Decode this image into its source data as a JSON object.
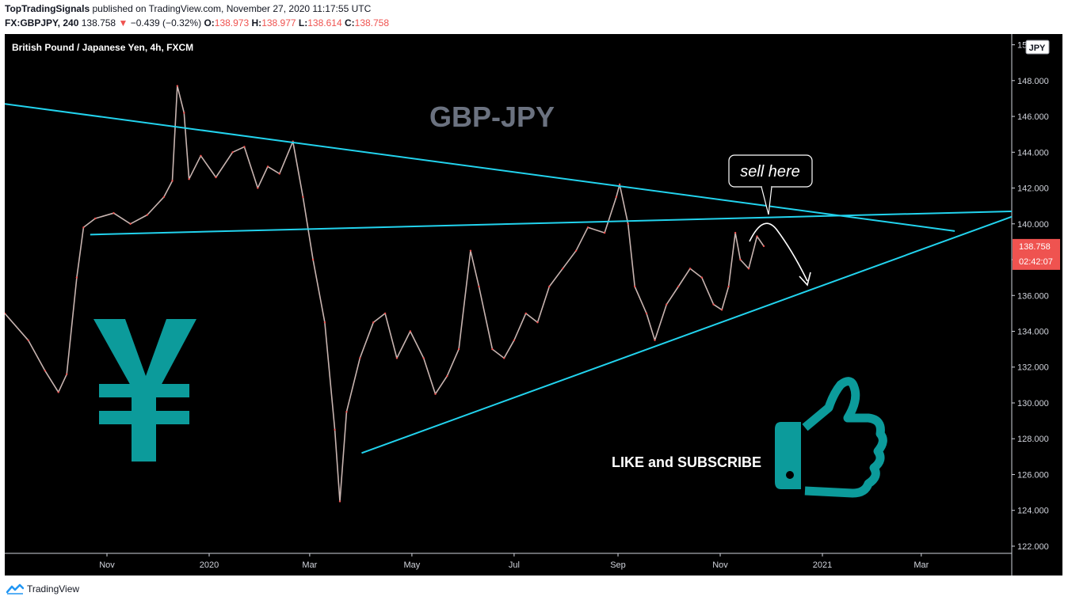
{
  "header": {
    "author": "TopTradingSignals",
    "published": "published on TradingView.com, November 27, 2020 11:17:55 UTC",
    "symbol": "FX:GBPJPY, 240",
    "last": "138.758",
    "change": "−0.439 (−0.32%)",
    "o_label": "O:",
    "o": "138.973",
    "h_label": "H:",
    "h": "138.977",
    "l_label": "L:",
    "l": "138.614",
    "c_label": "C:",
    "c": "138.758"
  },
  "legend_title": "British Pound / Japanese Yen, 4h, FXCM",
  "currency_badge": "JPY",
  "price_label": "138.758",
  "countdown": "02:42:07",
  "annotations": {
    "watermark": "GBP-JPY",
    "callout": "sell here",
    "cta": "LIKE and SUBSCRIBE",
    "yen_symbol": "¥"
  },
  "footer": {
    "brand": "TradingView"
  },
  "colors": {
    "bg": "#000000",
    "trendline": "#22d3ee",
    "teal": "#0c9b9b",
    "price_tag": "#ef5350"
  },
  "chart_data": {
    "type": "line",
    "title": "British Pound / Japanese Yen, 4h, FXCM",
    "xlabel": "",
    "ylabel": "",
    "y_ticks": [
      "150.000",
      "148.000",
      "146.000",
      "144.000",
      "142.000",
      "140.000",
      "138.000",
      "136.000",
      "134.000",
      "132.000",
      "130.000",
      "128.000",
      "126.000",
      "124.000",
      "122.000"
    ],
    "x_ticks": [
      "Nov",
      "2020",
      "Mar",
      "May",
      "Jul",
      "Sep",
      "Nov",
      "2021",
      "Mar"
    ],
    "ylim": [
      121.6,
      150.6
    ],
    "x_start": "2019-09-01",
    "x_end": "2021-04-24",
    "series": [
      {
        "points": [
          [
            "2019-09-01",
            135.0
          ],
          [
            "2019-09-15",
            133.5
          ],
          [
            "2019-09-25",
            131.8
          ],
          [
            "2019-10-03",
            130.6
          ],
          [
            "2019-10-08",
            131.6
          ],
          [
            "2019-10-14",
            137.0
          ],
          [
            "2019-10-18",
            139.8
          ],
          [
            "2019-10-25",
            140.3
          ],
          [
            "2019-11-05",
            140.6
          ],
          [
            "2019-11-15",
            140.0
          ],
          [
            "2019-11-25",
            140.5
          ],
          [
            "2019-12-05",
            141.5
          ],
          [
            "2019-12-10",
            142.4
          ],
          [
            "2019-12-13",
            147.7
          ],
          [
            "2019-12-17",
            146.2
          ],
          [
            "2019-12-20",
            142.5
          ],
          [
            "2019-12-27",
            143.8
          ],
          [
            "2020-01-05",
            142.6
          ],
          [
            "2020-01-15",
            144.0
          ],
          [
            "2020-01-22",
            144.3
          ],
          [
            "2020-01-30",
            142.0
          ],
          [
            "2020-02-05",
            143.2
          ],
          [
            "2020-02-12",
            142.8
          ],
          [
            "2020-02-20",
            144.6
          ],
          [
            "2020-02-26",
            141.5
          ],
          [
            "2020-03-03",
            138.0
          ],
          [
            "2020-03-10",
            134.5
          ],
          [
            "2020-03-16",
            128.5
          ],
          [
            "2020-03-19",
            124.5
          ],
          [
            "2020-03-23",
            129.5
          ],
          [
            "2020-03-31",
            132.5
          ],
          [
            "2020-04-08",
            134.5
          ],
          [
            "2020-04-15",
            135.0
          ],
          [
            "2020-04-22",
            132.5
          ],
          [
            "2020-04-30",
            134.0
          ],
          [
            "2020-05-08",
            132.5
          ],
          [
            "2020-05-15",
            130.5
          ],
          [
            "2020-05-22",
            131.5
          ],
          [
            "2020-05-29",
            133.0
          ],
          [
            "2020-06-05",
            138.5
          ],
          [
            "2020-06-10",
            136.5
          ],
          [
            "2020-06-18",
            133.0
          ],
          [
            "2020-06-25",
            132.5
          ],
          [
            "2020-07-01",
            133.5
          ],
          [
            "2020-07-08",
            135.0
          ],
          [
            "2020-07-15",
            134.5
          ],
          [
            "2020-07-22",
            136.5
          ],
          [
            "2020-07-30",
            137.5
          ],
          [
            "2020-08-07",
            138.5
          ],
          [
            "2020-08-14",
            139.8
          ],
          [
            "2020-08-24",
            139.5
          ],
          [
            "2020-08-31",
            141.5
          ],
          [
            "2020-09-02",
            142.2
          ],
          [
            "2020-09-07",
            140.0
          ],
          [
            "2020-09-11",
            136.5
          ],
          [
            "2020-09-18",
            135.0
          ],
          [
            "2020-09-23",
            133.5
          ],
          [
            "2020-09-30",
            135.5
          ],
          [
            "2020-10-07",
            136.5
          ],
          [
            "2020-10-14",
            137.5
          ],
          [
            "2020-10-21",
            137.0
          ],
          [
            "2020-10-28",
            135.5
          ],
          [
            "2020-11-02",
            135.2
          ],
          [
            "2020-11-06",
            136.5
          ],
          [
            "2020-11-10",
            139.5
          ],
          [
            "2020-11-13",
            138.0
          ],
          [
            "2020-11-18",
            137.5
          ],
          [
            "2020-11-23",
            139.3
          ],
          [
            "2020-11-27",
            138.758
          ]
        ]
      }
    ],
    "trendlines": [
      {
        "name": "",
        "from": [
          "2019-09-01",
          146.7
        ],
        "to": [
          "2021-03-21",
          139.6
        ]
      },
      {
        "name": "",
        "from": [
          "2019-10-22",
          139.4
        ],
        "to": [
          "2021-04-24",
          140.7
        ]
      },
      {
        "name": "",
        "from": [
          "2020-04-01",
          127.2
        ],
        "to": [
          "2021-04-24",
          140.4
        ]
      }
    ],
    "grid": false,
    "legend": "top-left"
  }
}
